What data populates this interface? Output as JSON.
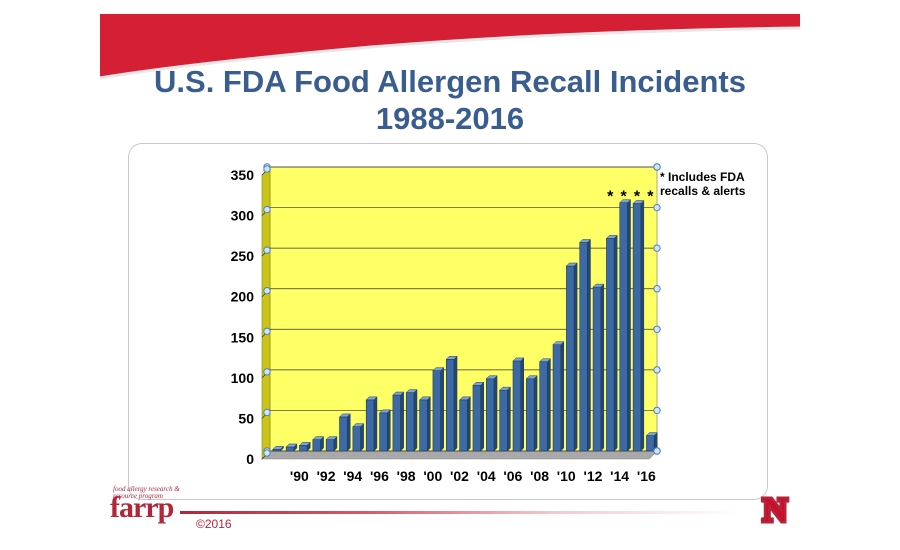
{
  "title": {
    "line1": "U.S. FDA Food Allergen Recall Incidents",
    "line2": "1988-2016"
  },
  "footnote": "* Includes FDA recalls & alerts",
  "footer": {
    "logo_text": "farrp",
    "logo_tagline": "food allergy research & resource program",
    "copyright": "©2016",
    "university_mark": "N"
  },
  "colors": {
    "banner": "#d51f34",
    "title": "#3a5d8f",
    "plot_bg": "#ffff66",
    "bar": "#3d6aa5",
    "brand": "#b3263a"
  },
  "chart_data": {
    "type": "bar",
    "grid": true,
    "ylim": [
      0,
      350
    ],
    "yticks": [
      0,
      50,
      100,
      150,
      200,
      250,
      300,
      350
    ],
    "categories": [
      "'88",
      "'89",
      "'90",
      "'91",
      "'92",
      "'93",
      "'94",
      "'95",
      "'96",
      "'97",
      "'98",
      "'99",
      "'00",
      "'01",
      "'02",
      "'03",
      "'04",
      "'05",
      "'06",
      "'07",
      "'08",
      "'09",
      "'10",
      "'11",
      "'12",
      "'13",
      "'14",
      "'15",
      "'16"
    ],
    "xtick_labels": [
      "'90",
      "'92",
      "'94",
      "'96",
      "'98",
      "'00",
      "'02",
      "'04",
      "'06",
      "'08",
      "'10",
      "'12",
      "'14",
      "'16"
    ],
    "values": [
      2,
      5,
      7,
      14,
      14,
      42,
      30,
      63,
      47,
      69,
      72,
      63,
      99,
      113,
      63,
      81,
      89,
      75,
      111,
      89,
      110,
      131,
      228,
      257,
      202,
      262,
      306,
      305,
      19
    ],
    "annotations": [
      {
        "category": "'13",
        "text": "*"
      },
      {
        "category": "'14",
        "text": "*"
      },
      {
        "category": "'15",
        "text": "*"
      },
      {
        "category": "'16",
        "text": "*"
      }
    ]
  }
}
